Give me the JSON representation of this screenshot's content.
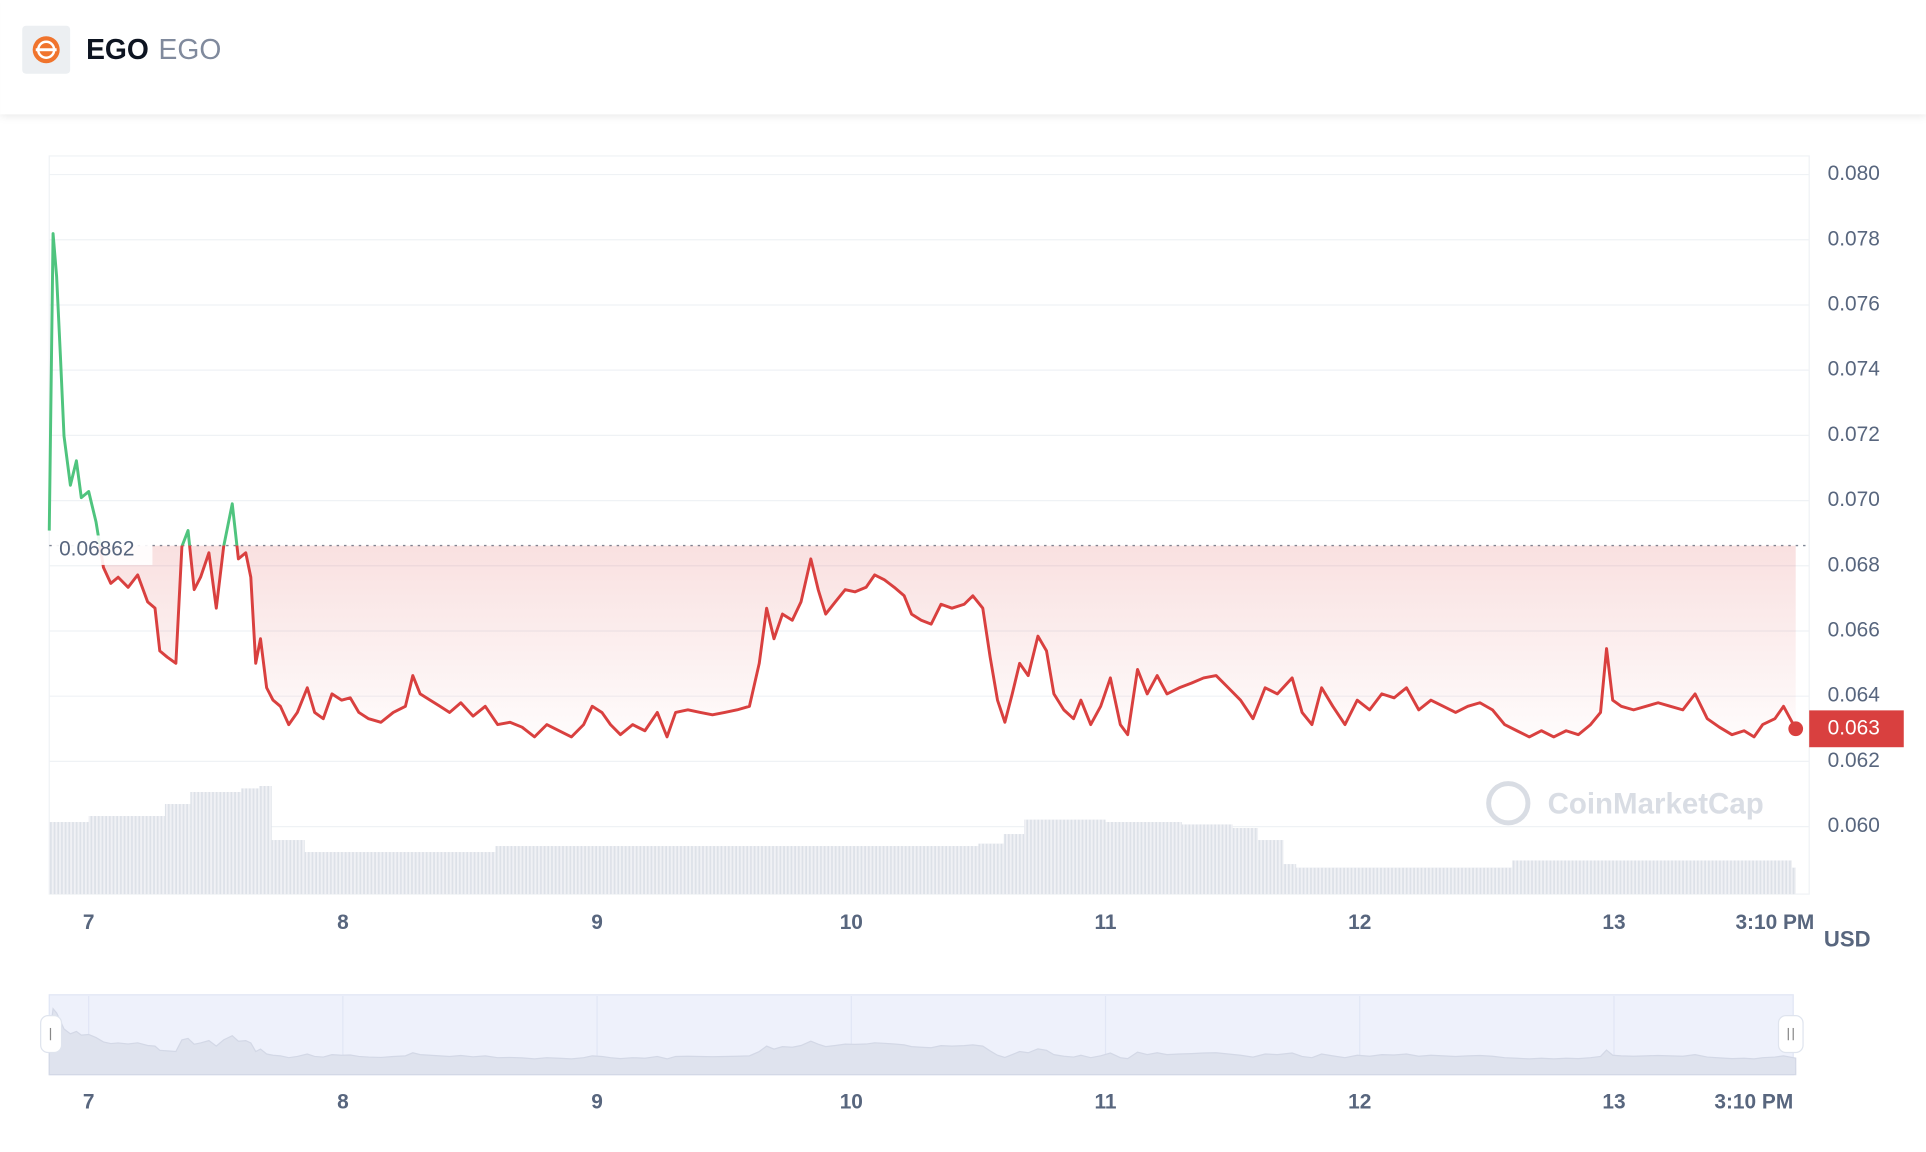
{
  "header": {
    "name": "EGO",
    "symbol": "EGO"
  },
  "chart_data": {
    "type": "line",
    "currency": "USD",
    "watermark": "CoinMarketCap",
    "up_color": "#4fc47e",
    "down_color": "#d9403f",
    "reference_line": {
      "value": 0.06862
    },
    "xlim": [
      6.845,
      13.768
    ],
    "xticks": [
      7,
      8,
      9,
      10,
      11,
      12,
      13,
      {
        "value": 13.633,
        "label": "3:10 PM"
      }
    ],
    "ylim": [
      0.05793,
      0.08057
    ],
    "yticks": [
      {
        "value": 0.06,
        "label": "0.060"
      },
      0.062,
      0.064,
      0.066,
      0.068,
      {
        "value": 0.07,
        "label": "0.070"
      },
      0.072,
      0.074,
      0.076,
      0.078,
      {
        "value": 0.08,
        "label": "0.080"
      }
    ],
    "grid": true,
    "x": [
      6.845,
      6.86,
      6.874,
      6.889,
      6.903,
      6.928,
      6.952,
      6.971,
      7.0,
      7.029,
      7.058,
      7.087,
      7.116,
      7.155,
      7.193,
      7.232,
      7.261,
      7.28,
      7.309,
      7.343,
      7.367,
      7.391,
      7.415,
      7.44,
      7.473,
      7.502,
      7.531,
      7.565,
      7.589,
      7.618,
      7.638,
      7.657,
      7.676,
      7.7,
      7.725,
      7.754,
      7.787,
      7.821,
      7.86,
      7.889,
      7.923,
      7.957,
      7.995,
      8.029,
      8.063,
      8.101,
      8.15,
      8.198,
      8.246,
      8.275,
      8.304,
      8.343,
      8.382,
      8.42,
      8.464,
      8.512,
      8.56,
      8.609,
      8.657,
      8.705,
      8.754,
      8.802,
      8.85,
      8.899,
      8.947,
      8.981,
      9.019,
      9.053,
      9.092,
      9.14,
      9.188,
      9.237,
      9.275,
      9.309,
      9.357,
      9.406,
      9.454,
      9.502,
      9.551,
      9.599,
      9.638,
      9.667,
      9.696,
      9.729,
      9.768,
      9.802,
      9.841,
      9.87,
      9.899,
      9.937,
      9.976,
      10.014,
      10.058,
      10.092,
      10.13,
      10.169,
      10.208,
      10.237,
      10.275,
      10.314,
      10.353,
      10.396,
      10.444,
      10.478,
      10.517,
      10.546,
      10.575,
      10.604,
      10.633,
      10.662,
      10.696,
      10.734,
      10.768,
      10.797,
      10.836,
      10.874,
      10.903,
      10.942,
      10.981,
      11.019,
      11.058,
      11.087,
      11.126,
      11.164,
      11.203,
      11.242,
      11.29,
      11.338,
      11.386,
      11.435,
      11.483,
      11.531,
      11.58,
      11.628,
      11.676,
      11.734,
      11.773,
      11.812,
      11.85,
      11.894,
      11.942,
      11.99,
      12.039,
      12.087,
      12.135,
      12.184,
      12.232,
      12.28,
      12.329,
      12.377,
      12.425,
      12.473,
      12.522,
      12.57,
      12.618,
      12.667,
      12.715,
      12.763,
      12.812,
      12.86,
      12.908,
      12.947,
      12.971,
      12.995,
      13.029,
      13.077,
      13.126,
      13.174,
      13.222,
      13.271,
      13.319,
      13.367,
      13.415,
      13.464,
      13.512,
      13.551,
      13.585,
      13.633,
      13.667,
      13.715
    ],
    "values": [
      0.06908,
      0.07819,
      0.07687,
      0.07442,
      0.07198,
      0.07047,
      0.07122,
      0.07009,
      0.07028,
      0.06934,
      0.06795,
      0.06746,
      0.06765,
      0.06734,
      0.06772,
      0.06689,
      0.0667,
      0.06539,
      0.0652,
      0.06501,
      0.06859,
      0.06908,
      0.06727,
      0.06765,
      0.0684,
      0.0667,
      0.06859,
      0.0699,
      0.06821,
      0.0684,
      0.06765,
      0.06501,
      0.06576,
      0.06426,
      0.06388,
      0.06369,
      0.06313,
      0.0635,
      0.06426,
      0.0635,
      0.06331,
      0.06407,
      0.06388,
      0.06395,
      0.0635,
      0.06331,
      0.0632,
      0.0635,
      0.06369,
      0.06463,
      0.06407,
      0.06388,
      0.06369,
      0.0635,
      0.0638,
      0.06339,
      0.06369,
      0.06313,
      0.0632,
      0.06305,
      0.06275,
      0.06313,
      0.06294,
      0.06275,
      0.06313,
      0.06369,
      0.0635,
      0.06313,
      0.06282,
      0.06313,
      0.06294,
      0.0635,
      0.06275,
      0.0635,
      0.06358,
      0.0635,
      0.06343,
      0.0635,
      0.06358,
      0.06369,
      0.06501,
      0.0667,
      0.06576,
      0.06652,
      0.06633,
      0.06689,
      0.06821,
      0.06727,
      0.06652,
      0.06689,
      0.06727,
      0.0672,
      0.06734,
      0.06772,
      0.06757,
      0.06734,
      0.06708,
      0.06652,
      0.06633,
      0.06621,
      0.06682,
      0.0667,
      0.06682,
      0.06708,
      0.0667,
      0.0652,
      0.06388,
      0.0632,
      0.06407,
      0.06501,
      0.06463,
      0.06584,
      0.06539,
      0.06407,
      0.06358,
      0.06331,
      0.06388,
      0.06313,
      0.06369,
      0.06456,
      0.06313,
      0.06282,
      0.06482,
      0.06407,
      0.06463,
      0.06407,
      0.06426,
      0.0644,
      0.06456,
      0.06463,
      0.06426,
      0.06388,
      0.06331,
      0.06426,
      0.06407,
      0.06456,
      0.0635,
      0.06313,
      0.06426,
      0.06369,
      0.06313,
      0.06388,
      0.06358,
      0.06407,
      0.06395,
      0.06426,
      0.06358,
      0.06388,
      0.06369,
      0.0635,
      0.06369,
      0.0638,
      0.06358,
      0.06313,
      0.06294,
      0.06275,
      0.06294,
      0.06275,
      0.06294,
      0.06282,
      0.06313,
      0.0635,
      0.06546,
      0.06388,
      0.06369,
      0.06358,
      0.06369,
      0.0638,
      0.06369,
      0.06358,
      0.06407,
      0.06331,
      0.06305,
      0.06282,
      0.06294,
      0.06275,
      0.06313,
      0.06331,
      0.06369,
      0.063
    ],
    "volume": {
      "color": "#dde1e8",
      "x": [
        6.845,
        7.0,
        7.3,
        7.4,
        7.6,
        7.67,
        7.72,
        7.85,
        8.0,
        8.5,
        8.6,
        9.0,
        9.5,
        10.0,
        10.5,
        10.6,
        10.68,
        11.0,
        11.3,
        11.5,
        11.6,
        11.7,
        11.75,
        12.0,
        12.5,
        12.6,
        13.0,
        13.5,
        13.7
      ],
      "values": [
        60,
        65,
        75,
        85,
        88,
        90,
        45,
        35,
        35,
        35,
        40,
        40,
        40,
        40,
        42,
        50,
        62,
        60,
        58,
        55,
        45,
        25,
        22,
        22,
        22,
        28,
        28,
        28,
        22
      ]
    }
  }
}
